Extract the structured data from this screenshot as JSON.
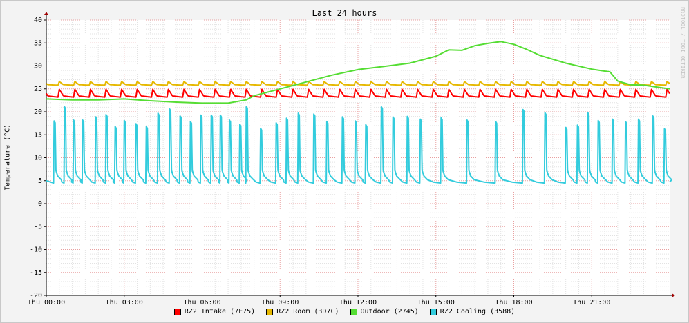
{
  "chart_data": {
    "type": "line",
    "title": "Last 24 hours",
    "ylabel": "Temperature (°C)",
    "xlabel": "",
    "watermark": "RRDTOOL / TOBI OETIKER",
    "ylim": [
      -20,
      40
    ],
    "xlim_hours": [
      0,
      24
    ],
    "y_ticks": [
      40,
      35,
      30,
      25,
      20,
      15,
      10,
      5,
      0,
      -5,
      -10,
      -15,
      -20
    ],
    "y_tick_labels": [
      "40",
      "35",
      "30",
      "25",
      "20",
      "15",
      "10",
      "5",
      "0",
      "-5",
      "-10",
      "-15",
      "-20"
    ],
    "x_tick_hours": [
      0,
      3,
      6,
      9,
      12,
      15,
      18,
      21
    ],
    "x_tick_labels": [
      "Thu 00:00",
      "Thu 03:00",
      "Thu 06:00",
      "Thu 09:00",
      "Thu 12:00",
      "Thu 15:00",
      "Thu 18:00",
      "Thu 21:00"
    ],
    "grid": true,
    "legend_position": "bottom",
    "series": [
      {
        "name": "RZ2 Intake (7F75)",
        "color": "#ff0000",
        "style": "cycle",
        "base": 23.2,
        "peak": 24.9,
        "period_h": 0.6,
        "x": [
          0,
          24
        ]
      },
      {
        "name": "RZ2 Room (3D7C)",
        "color": "#e6b800",
        "style": "cycle",
        "base": 25.8,
        "peak": 26.6,
        "period_h": 0.6,
        "x": [
          0,
          24
        ]
      },
      {
        "name": "Outdoor (2745)",
        "color": "#55dd33",
        "style": "line",
        "x": [
          0,
          1,
          2,
          3,
          4,
          5,
          6,
          7,
          7.7,
          8,
          9,
          10,
          11,
          12,
          13,
          14,
          15,
          15.5,
          16,
          16.5,
          17,
          17.5,
          18,
          18.5,
          19,
          20,
          21,
          21.7,
          22,
          22.5,
          23,
          23.5,
          24
        ],
        "y": [
          22.8,
          22.6,
          22.6,
          22.8,
          22.4,
          22.1,
          21.9,
          21.9,
          22.6,
          23.5,
          25.0,
          26.5,
          28.0,
          29.2,
          29.9,
          30.6,
          32.1,
          33.5,
          33.4,
          34.4,
          34.9,
          35.3,
          34.7,
          33.6,
          32.3,
          30.6,
          29.3,
          28.7,
          26.7,
          25.9,
          25.8,
          25.4,
          25.0
        ]
      },
      {
        "name": "RZ2 Cooling (3588)",
        "color": "#33ccdd",
        "style": "spikes",
        "x": [
          0.3,
          0.7,
          1.05,
          1.4,
          1.9,
          2.3,
          2.65,
          3.0,
          3.45,
          3.85,
          4.3,
          4.75,
          5.15,
          5.55,
          5.95,
          6.35,
          6.7,
          7.05,
          7.45,
          7.7,
          8.25,
          8.85,
          9.25,
          9.7,
          10.3,
          10.8,
          11.4,
          11.9,
          12.3,
          12.9,
          13.35,
          13.9,
          14.4,
          15.2,
          16.2,
          17.3,
          18.35,
          19.2,
          20.0,
          20.45,
          20.85,
          21.25,
          21.8,
          22.3,
          22.8,
          23.35,
          23.8
        ],
        "peaks": [
          18.0,
          21.1,
          18.2,
          18.2,
          18.9,
          19.4,
          16.8,
          18.1,
          17.4,
          16.8,
          19.7,
          20.6,
          19.1,
          17.9,
          19.3,
          19.3,
          19.3,
          18.2,
          17.3,
          21.1,
          16.4,
          17.6,
          18.6,
          19.7,
          19.5,
          17.9,
          18.9,
          18.0,
          17.2,
          21.1,
          18.9,
          19.0,
          18.4,
          18.7,
          18.2,
          17.9,
          20.5,
          19.8,
          16.6,
          17.1,
          19.8,
          18.1,
          18.4,
          17.9,
          18.4,
          19.1,
          16.3
        ],
        "base": 4.7
      }
    ]
  }
}
